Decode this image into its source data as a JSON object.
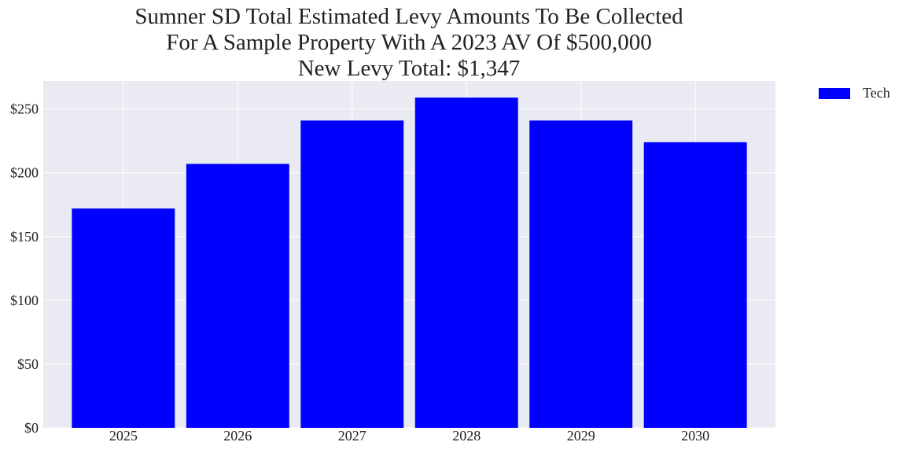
{
  "chart_data": {
    "type": "bar",
    "title_lines": [
      "Sumner SD Total Estimated Levy Amounts To Be Collected",
      "For A Sample Property With A 2023 AV Of $500,000",
      "New Levy Total: $1,347"
    ],
    "categories": [
      "2025",
      "2026",
      "2027",
      "2028",
      "2029",
      "2030"
    ],
    "series": [
      {
        "name": "Tech",
        "values": [
          172,
          207,
          241,
          259,
          241,
          224
        ],
        "color": "#0000ff"
      }
    ],
    "ylim": [
      0,
      272
    ],
    "yticks": [
      0,
      50,
      100,
      150,
      200,
      250
    ],
    "ytick_labels": [
      "$0",
      "$50",
      "$100",
      "$150",
      "$200",
      "$250"
    ],
    "xlabel": "",
    "ylabel": "",
    "grid": true,
    "legend_position": "outside-top-right",
    "plot_background": "#eaeaf2",
    "grid_color": "#ffffff"
  }
}
